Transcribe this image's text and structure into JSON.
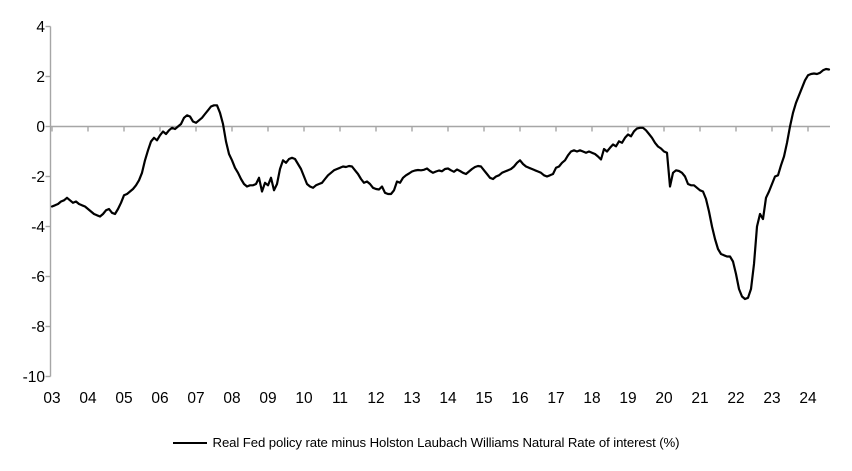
{
  "chart": {
    "legend": {
      "label": "Real Fed policy rate minus Holston Laubach Williams Natural Rate of interest (%)"
    },
    "colors": {
      "line": "#000000",
      "axis": "#a6a6a6",
      "text": "#000000",
      "background": "#ffffff"
    }
  },
  "chart_data": {
    "type": "line",
    "title": "",
    "xlabel": "",
    "ylabel": "",
    "grid": false,
    "legend_position": "bottom",
    "zero_line": true,
    "ylim": [
      -10,
      4
    ],
    "y_ticks": [
      4,
      2,
      0,
      -2,
      -4,
      -6,
      -8,
      -10
    ],
    "x_tick_labels": [
      "03",
      "04",
      "05",
      "06",
      "07",
      "08",
      "09",
      "10",
      "11",
      "12",
      "13",
      "14",
      "15",
      "16",
      "17",
      "18",
      "19",
      "20",
      "21",
      "22",
      "23",
      "24"
    ],
    "series": [
      {
        "name": "Real Fed policy rate minus Holston Laubach Williams Natural Rate of interest (%)",
        "x_start_year": 2003,
        "x_step": "monthly",
        "values": [
          -3.2,
          -3.15,
          -3.1,
          -3.0,
          -2.95,
          -2.85,
          -2.95,
          -3.05,
          -3.0,
          -3.1,
          -3.15,
          -3.2,
          -3.3,
          -3.4,
          -3.5,
          -3.55,
          -3.6,
          -3.5,
          -3.35,
          -3.3,
          -3.45,
          -3.5,
          -3.3,
          -3.05,
          -2.75,
          -2.7,
          -2.6,
          -2.5,
          -2.35,
          -2.15,
          -1.85,
          -1.35,
          -0.95,
          -0.6,
          -0.45,
          -0.55,
          -0.35,
          -0.2,
          -0.3,
          -0.15,
          -0.05,
          -0.1,
          0.0,
          0.1,
          0.35,
          0.45,
          0.4,
          0.2,
          0.15,
          0.25,
          0.35,
          0.5,
          0.65,
          0.8,
          0.85,
          0.85,
          0.55,
          0.1,
          -0.6,
          -1.1,
          -1.35,
          -1.65,
          -1.85,
          -2.1,
          -2.3,
          -2.4,
          -2.35,
          -2.35,
          -2.3,
          -2.05,
          -2.6,
          -2.25,
          -2.35,
          -2.05,
          -2.55,
          -2.3,
          -1.7,
          -1.35,
          -1.45,
          -1.3,
          -1.25,
          -1.3,
          -1.5,
          -1.7,
          -2.0,
          -2.3,
          -2.4,
          -2.45,
          -2.35,
          -2.3,
          -2.25,
          -2.1,
          -1.95,
          -1.85,
          -1.75,
          -1.7,
          -1.65,
          -1.6,
          -1.62,
          -1.58,
          -1.6,
          -1.75,
          -1.9,
          -2.1,
          -2.25,
          -2.2,
          -2.3,
          -2.45,
          -2.5,
          -2.52,
          -2.4,
          -2.65,
          -2.7,
          -2.7,
          -2.55,
          -2.2,
          -2.25,
          -2.05,
          -1.95,
          -1.88,
          -1.8,
          -1.76,
          -1.74,
          -1.75,
          -1.73,
          -1.68,
          -1.78,
          -1.85,
          -1.8,
          -1.76,
          -1.79,
          -1.7,
          -1.68,
          -1.75,
          -1.81,
          -1.72,
          -1.78,
          -1.85,
          -1.9,
          -1.8,
          -1.7,
          -1.62,
          -1.58,
          -1.6,
          -1.75,
          -1.9,
          -2.05,
          -2.1,
          -2.0,
          -1.95,
          -1.85,
          -1.8,
          -1.75,
          -1.7,
          -1.6,
          -1.45,
          -1.35,
          -1.5,
          -1.6,
          -1.65,
          -1.7,
          -1.75,
          -1.8,
          -1.85,
          -1.95,
          -2.0,
          -1.95,
          -1.9,
          -1.65,
          -1.6,
          -1.45,
          -1.35,
          -1.15,
          -1.0,
          -0.95,
          -1.0,
          -0.95,
          -1.0,
          -1.05,
          -1.0,
          -1.05,
          -1.1,
          -1.2,
          -1.32,
          -0.9,
          -1.0,
          -0.85,
          -0.72,
          -0.79,
          -0.59,
          -0.65,
          -0.45,
          -0.32,
          -0.39,
          -0.19,
          -0.08,
          -0.05,
          -0.05,
          -0.15,
          -0.3,
          -0.45,
          -0.65,
          -0.8,
          -0.88,
          -1.0,
          -1.05,
          -2.4,
          -1.85,
          -1.75,
          -1.78,
          -1.85,
          -2.0,
          -2.3,
          -2.35,
          -2.35,
          -2.45,
          -2.55,
          -2.6,
          -2.9,
          -3.4,
          -4.0,
          -4.5,
          -4.9,
          -5.1,
          -5.15,
          -5.2,
          -5.2,
          -5.4,
          -5.9,
          -6.5,
          -6.8,
          -6.9,
          -6.85,
          -6.5,
          -5.5,
          -4.0,
          -3.5,
          -3.7,
          -2.85,
          -2.6,
          -2.3,
          -2.0,
          -1.95,
          -1.55,
          -1.2,
          -0.65,
          0.0,
          0.55,
          0.95,
          1.25,
          1.55,
          1.85,
          2.05,
          2.1,
          2.12,
          2.1,
          2.15,
          2.25,
          2.3,
          2.28
        ]
      }
    ]
  }
}
